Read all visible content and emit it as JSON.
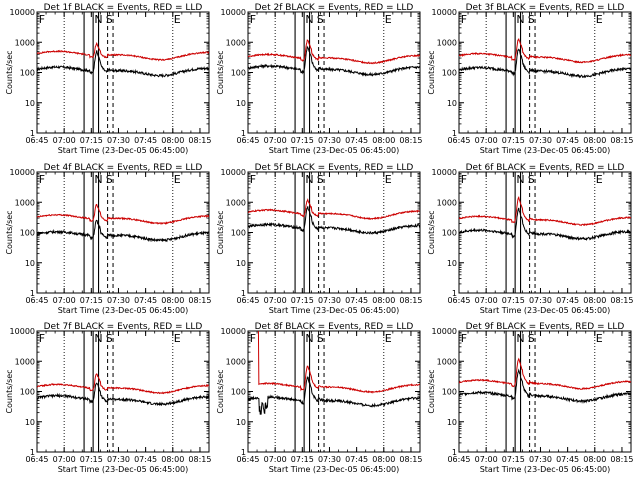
{
  "figure": {
    "colors": {
      "events": "#000000",
      "lld": "#cc0000",
      "axes": "#000000"
    },
    "time_axis": {
      "start_minutes": 405,
      "end_minutes": 500,
      "tick_labels": [
        "06:45",
        "07:00",
        "07:15",
        "07:30",
        "07:45",
        "08:00",
        "08:15"
      ],
      "tick_values_minutes": [
        405,
        420,
        435,
        450,
        465,
        480,
        495
      ]
    },
    "y_axis": {
      "scale": "log",
      "range": [
        1,
        10000
      ],
      "tick_labels": [
        "1",
        "10",
        "100",
        "1000",
        "10000"
      ],
      "tick_values": [
        1,
        10,
        100,
        1000,
        10000
      ],
      "label": "Counts/sec"
    },
    "x_label": "Start Time (23-Dec-05 06:45:00)",
    "marker_letters": [
      "F",
      "N",
      "S",
      "E"
    ]
  },
  "chart_data": [
    {
      "type": "line",
      "title": "Det 1f BLACK = Events, RED = LLD",
      "series": [
        {
          "name": "Events",
          "baseline": 115,
          "peak": 500
        },
        {
          "name": "LLD",
          "baseline": 380,
          "peak": 900
        }
      ],
      "peak_time_minutes": 438,
      "vlines_solid_minutes": [
        431,
        436,
        439
      ],
      "vlines_dashed_minutes": [
        444,
        447
      ],
      "vlines_dotted_minutes": [
        420,
        480
      ]
    },
    {
      "type": "line",
      "title": "Det 2f BLACK = Events, RED = LLD",
      "series": [
        {
          "name": "Events",
          "baseline": 125,
          "peak": 700
        },
        {
          "name": "LLD",
          "baseline": 300,
          "peak": 1200
        }
      ],
      "peak_time_minutes": 438,
      "vlines_solid_minutes": [
        431,
        436,
        439
      ],
      "vlines_dashed_minutes": [
        444,
        447
      ],
      "vlines_dotted_minutes": [
        420,
        480
      ]
    },
    {
      "type": "line",
      "title": "Det 3f BLACK = Events, RED = LLD",
      "series": [
        {
          "name": "Events",
          "baseline": 110,
          "peak": 600
        },
        {
          "name": "LLD",
          "baseline": 320,
          "peak": 1300
        }
      ],
      "peak_time_minutes": 438,
      "vlines_solid_minutes": [
        431,
        436,
        439
      ],
      "vlines_dashed_minutes": [
        444,
        447
      ],
      "vlines_dotted_minutes": [
        420,
        480
      ]
    },
    {
      "type": "line",
      "title": "Det 4f BLACK = Events, RED = LLD",
      "series": [
        {
          "name": "Events",
          "baseline": 80,
          "peak": 250
        },
        {
          "name": "LLD",
          "baseline": 290,
          "peak": 850
        }
      ],
      "peak_time_minutes": 438,
      "vlines_solid_minutes": [
        431,
        436,
        439
      ],
      "vlines_dashed_minutes": [
        444,
        447
      ],
      "vlines_dotted_minutes": [
        420,
        480
      ]
    },
    {
      "type": "line",
      "title": "Det 5f BLACK = Events, RED = LLD",
      "series": [
        {
          "name": "Events",
          "baseline": 140,
          "peak": 700
        },
        {
          "name": "LLD",
          "baseline": 420,
          "peak": 1200
        }
      ],
      "peak_time_minutes": 438,
      "vlines_solid_minutes": [
        431,
        436,
        439
      ],
      "vlines_dashed_minutes": [
        444,
        447
      ],
      "vlines_dotted_minutes": [
        420,
        480
      ]
    },
    {
      "type": "line",
      "title": "Det 6f BLACK = Events, RED = LLD",
      "series": [
        {
          "name": "Events",
          "baseline": 90,
          "peak": 600
        },
        {
          "name": "LLD",
          "baseline": 260,
          "peak": 1400
        }
      ],
      "peak_time_minutes": 438,
      "vlines_solid_minutes": [
        431,
        436,
        439
      ],
      "vlines_dashed_minutes": [
        444,
        447
      ],
      "vlines_dotted_minutes": [
        420,
        480
      ]
    },
    {
      "type": "line",
      "title": "Det 7f BLACK = Events, RED = LLD",
      "series": [
        {
          "name": "Events",
          "baseline": 55,
          "peak": 200
        },
        {
          "name": "LLD",
          "baseline": 130,
          "peak": 400
        }
      ],
      "peak_time_minutes": 438,
      "vlines_solid_minutes": [
        431,
        436,
        439
      ],
      "vlines_dashed_minutes": [
        444,
        447
      ],
      "vlines_dotted_minutes": [
        420,
        480
      ]
    },
    {
      "type": "line",
      "title": "Det 8f BLACK = Events, RED = LLD",
      "series": [
        {
          "name": "Events",
          "baseline": 50,
          "peak": 300
        },
        {
          "name": "LLD",
          "baseline": 140,
          "peak": 700
        }
      ],
      "peak_time_minutes": 438,
      "vlines_solid_minutes": [
        431,
        436,
        439
      ],
      "vlines_dashed_minutes": [
        444,
        447
      ],
      "vlines_dotted_minutes": [
        420,
        480
      ]
    },
    {
      "type": "line",
      "title": "Det 9f BLACK = Events, RED = LLD",
      "series": [
        {
          "name": "Events",
          "baseline": 70,
          "peak": 500
        },
        {
          "name": "LLD",
          "baseline": 180,
          "peak": 1200
        }
      ],
      "peak_time_minutes": 438,
      "vlines_solid_minutes": [
        431,
        436,
        439
      ],
      "vlines_dashed_minutes": [
        444,
        447
      ],
      "vlines_dotted_minutes": [
        420,
        480
      ]
    }
  ]
}
